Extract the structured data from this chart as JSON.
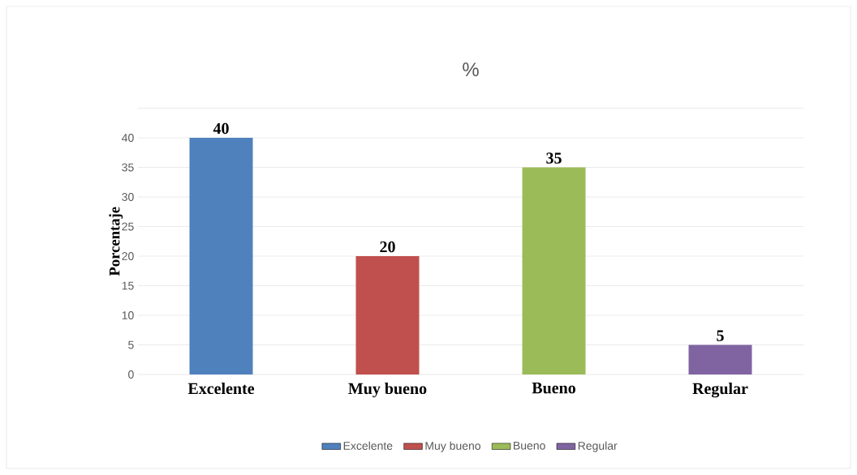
{
  "chart_data": {
    "type": "bar",
    "title": "%",
    "ylabel": "Porcentaje",
    "categories": [
      "Excelente",
      "Muy bueno",
      "Bueno",
      "Regular"
    ],
    "series": [
      {
        "name": "Excelente",
        "color": "#4f81bd",
        "values": [
          40,
          null,
          null,
          null
        ]
      },
      {
        "name": "Muy bueno",
        "color": "#c0504d",
        "values": [
          null,
          20,
          null,
          null
        ]
      },
      {
        "name": "Bueno",
        "color": "#9bbb59",
        "values": [
          null,
          null,
          35,
          null
        ]
      },
      {
        "name": "Regular",
        "color": "#8064a2",
        "values": [
          null,
          null,
          null,
          5
        ]
      }
    ],
    "ylim": [
      0,
      45
    ],
    "yticks": [
      0,
      5,
      10,
      15,
      20,
      25,
      30,
      35,
      40,
      {
        "value": 45,
        "label": null
      }
    ],
    "grid": "y",
    "legend": "bottom",
    "data_labels": true
  }
}
